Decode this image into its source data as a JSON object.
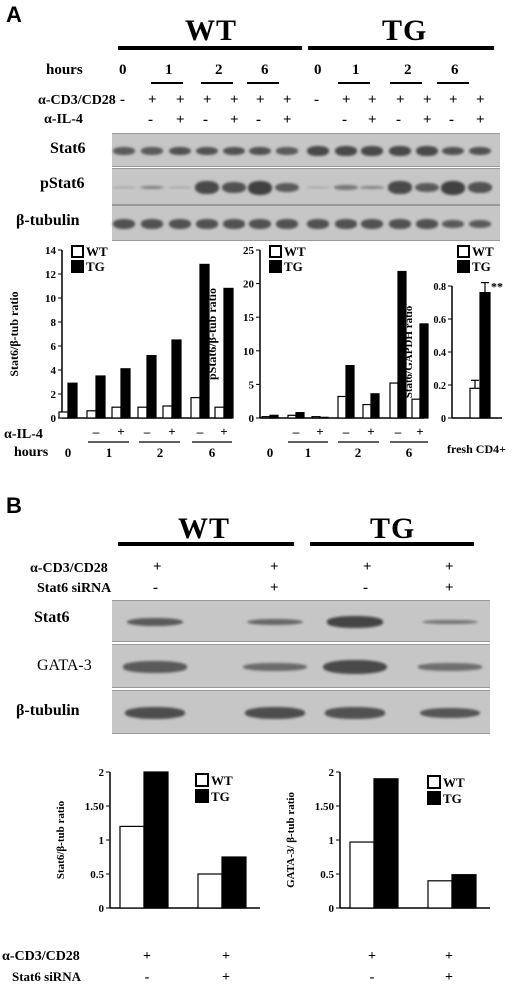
{
  "panel_a": {
    "letter": "A",
    "groups": [
      "WT",
      "TG"
    ],
    "hours_label": "hours",
    "hours_top": [
      "0",
      "1",
      "2",
      "6",
      "0",
      "1",
      "2",
      "6"
    ],
    "row1_label": "α-CD3/CD28",
    "row1_signs": [
      "-",
      "+",
      "+",
      "+",
      "+",
      "+",
      "+",
      "-",
      "+",
      "+",
      "+",
      "+",
      "+",
      "+"
    ],
    "row2_label": "α-IL-4",
    "row2_signs": [
      "-",
      "+",
      "-",
      "+",
      "-",
      "+",
      "-",
      "+",
      "-",
      "+",
      "-",
      "+"
    ],
    "blot_labels": [
      "Stat6",
      "pStat6",
      "β-tubulin"
    ],
    "bottom_il4_label": "α-IL-4",
    "bottom_hours_label": "hours",
    "bottom_il4_signs": [
      "–",
      "+",
      "–",
      "+",
      "–",
      "+"
    ],
    "bottom_hours": [
      "0",
      "1",
      "2",
      "6"
    ],
    "fresh_label": "fresh CD4+",
    "sig_mark": "**"
  },
  "panel_b": {
    "letter": "B",
    "groups": [
      "WT",
      "TG"
    ],
    "row1_label": "α-CD3/CD28",
    "row1_signs": [
      "+",
      "+",
      "+",
      "+"
    ],
    "row2_label": "Stat6 siRNA",
    "row2_signs": [
      "-",
      "+",
      "-",
      "+"
    ],
    "blot_labels": [
      "Stat6",
      "GATA-3",
      "β-tubulin"
    ],
    "bottom_row1_label": "α-CD3/CD28",
    "bottom_row2_label": "Stat6 siRNA",
    "bottom_row1_signs": [
      "+",
      "+",
      "+",
      "+"
    ],
    "bottom_row2_signs": [
      "-",
      "+",
      "-",
      "+"
    ]
  },
  "chart_data": [
    {
      "type": "bar",
      "id": "a1",
      "ylabel": "Stat6/β-tub ratio",
      "ylim": [
        0,
        14
      ],
      "yticks": [
        "0",
        "2",
        "4",
        "6",
        "8",
        "10",
        "12",
        "14"
      ],
      "legend": "top-left",
      "series": [
        {
          "name": "WT",
          "color": "#ffffff",
          "values": [
            0.5,
            0.6,
            0.9,
            0.9,
            1.0,
            1.7,
            2.0,
            0.9
          ]
        },
        {
          "name": "TG",
          "color": "#000000",
          "values": [
            2.9,
            3.5,
            4.1,
            5.2,
            6.5,
            12.8,
            10.8,
            null
          ]
        }
      ]
    },
    {
      "type": "bar",
      "id": "a2",
      "ylabel": "pStat6/β-tub ratio",
      "ylim": [
        0,
        25
      ],
      "yticks": [
        "0",
        "5",
        "10",
        "15",
        "20",
        "25"
      ],
      "legend": "top-left",
      "series": [
        {
          "name": "WT",
          "color": "#ffffff",
          "values": [
            0.2,
            0.4,
            0.2,
            3.2,
            2.0,
            5.2,
            2.8
          ]
        },
        {
          "name": "TG",
          "color": "#000000",
          "values": [
            0.4,
            0.8,
            0.1,
            7.8,
            3.6,
            21.8,
            14.0
          ]
        }
      ]
    },
    {
      "type": "bar",
      "id": "a3",
      "ylabel": "Stat6/GAPDH ratio",
      "ylim": [
        0,
        0.8
      ],
      "yticks": [
        "0",
        "0.2",
        "0.4",
        "0.6",
        "0.8"
      ],
      "categories": [
        "fresh CD4+"
      ],
      "legend": "top-right",
      "series": [
        {
          "name": "WT",
          "color": "#ffffff",
          "values": [
            0.18
          ]
        },
        {
          "name": "TG",
          "color": "#000000",
          "values": [
            0.76
          ]
        }
      ]
    },
    {
      "type": "bar",
      "id": "b1",
      "ylabel": "Stat6/β-tub ratio",
      "ylim": [
        0,
        2
      ],
      "yticks": [
        "0",
        "0.5",
        "1",
        "1.50",
        "2"
      ],
      "legend": "top-right",
      "series": [
        {
          "name": "WT",
          "color": "#ffffff",
          "values": [
            1.2,
            0.5
          ]
        },
        {
          "name": "TG",
          "color": "#000000",
          "values": [
            2.0,
            0.75
          ]
        }
      ]
    },
    {
      "type": "bar",
      "id": "b2",
      "ylabel": "GATA-3/ β-tub ratio",
      "ylim": [
        0,
        2
      ],
      "yticks": [
        "0",
        "0.5",
        "1",
        "1.50",
        "2"
      ],
      "legend": "top-right",
      "series": [
        {
          "name": "WT",
          "color": "#ffffff",
          "values": [
            0.97,
            0.4
          ]
        },
        {
          "name": "TG",
          "color": "#000000",
          "values": [
            1.9,
            0.49
          ]
        }
      ]
    }
  ]
}
